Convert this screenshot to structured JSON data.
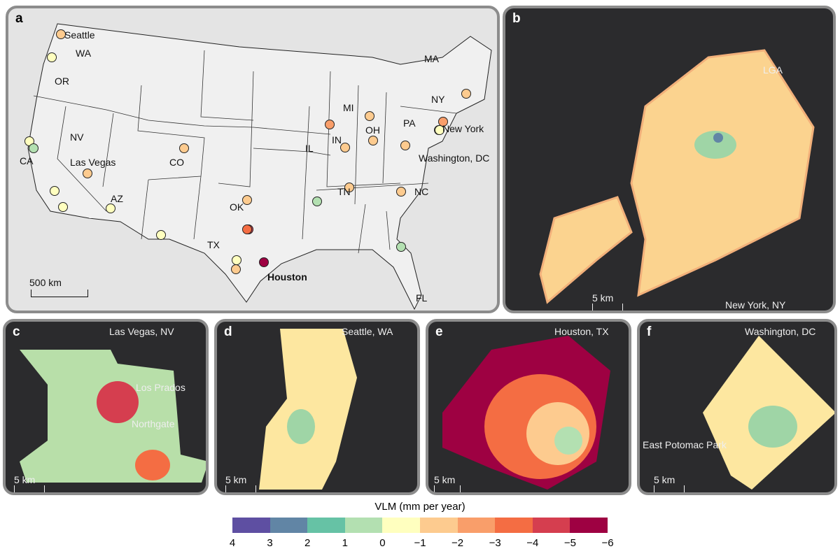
{
  "panel_a": {
    "letter": "a",
    "scale": "500 km",
    "labels": [
      "Seattle",
      "WA",
      "OR",
      "CA",
      "NV",
      "Las Vegas",
      "CO",
      "AZ",
      "TX",
      "OK",
      "IL",
      "IN",
      "MI",
      "OH",
      "PA",
      "NY",
      "MA",
      "New York",
      "Washington, DC",
      "TN",
      "NC",
      "FL",
      "Houston"
    ],
    "sites": [
      {
        "vlm": -1.5
      },
      {
        "vlm": -0.5
      },
      {
        "vlm": -0.5
      },
      {
        "vlm": 0.5
      },
      {
        "vlm": -0.5
      },
      {
        "vlm": -0.5
      },
      {
        "vlm": -1.5
      },
      {
        "vlm": -0.5
      },
      {
        "vlm": -1.5
      },
      {
        "vlm": -0.5
      },
      {
        "vlm": -1.5
      },
      {
        "vlm": -4.5
      },
      {
        "vlm": -3.5
      },
      {
        "vlm": -0.5
      },
      {
        "vlm": -1.5
      },
      {
        "vlm": -5.5
      },
      {
        "vlm": -2.5
      },
      {
        "vlm": -1.5
      },
      {
        "vlm": -1.5
      },
      {
        "vlm": -1.5
      },
      {
        "vlm": -1.5
      },
      {
        "vlm": -0.5
      },
      {
        "vlm": -2.5
      },
      {
        "vlm": -1.5
      },
      {
        "vlm": 0.5
      },
      {
        "vlm": -1.5
      },
      {
        "vlm": -1.5
      },
      {
        "vlm": 0.5
      },
      {
        "vlm": -0.5
      }
    ]
  },
  "panel_b": {
    "letter": "b",
    "place": "New York, NY",
    "annotation": "LGA",
    "scale": "5 km"
  },
  "panel_c": {
    "letter": "c",
    "place": "Las Vegas, NV",
    "annotations": [
      "Los Prados",
      "Northgate"
    ],
    "scale": "5 km"
  },
  "panel_d": {
    "letter": "d",
    "place": "Seattle, WA",
    "scale": "5 km"
  },
  "panel_e": {
    "letter": "e",
    "place": "Houston, TX",
    "scale": "5 km"
  },
  "panel_f": {
    "letter": "f",
    "place": "Washington, DC",
    "annotation": "East Potomac Park",
    "scale": "5 km"
  },
  "colorbar": {
    "title": "VLM (mm per year)",
    "ticks": [
      "4",
      "3",
      "2",
      "1",
      "0",
      "−1",
      "−2",
      "−3",
      "−4",
      "−5",
      "−6"
    ],
    "colors": [
      "#5e4fa2",
      "#6185a5",
      "#66c2a5",
      "#b3e0b1",
      "#ffffbf",
      "#fdcb8f",
      "#f99e6a",
      "#f46d43",
      "#d53e4f",
      "#9e0142"
    ]
  }
}
